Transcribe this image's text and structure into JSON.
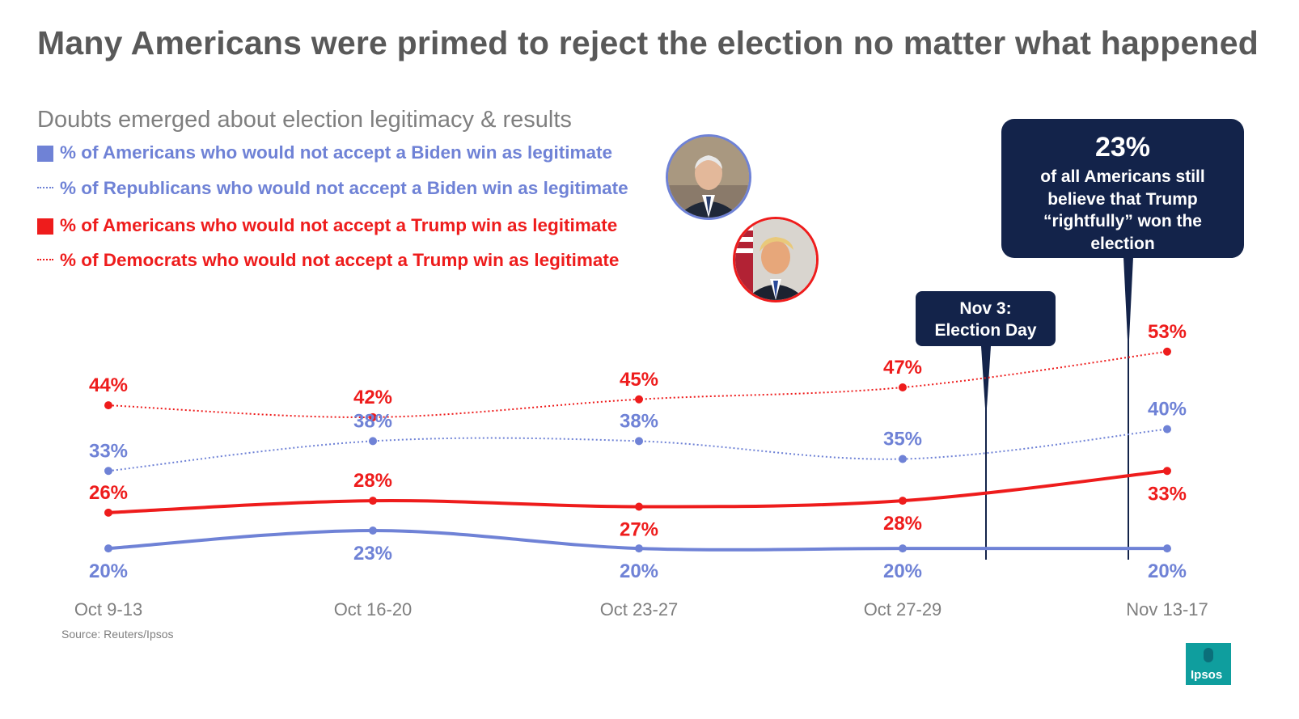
{
  "title": "Many Americans were primed to reject the election no matter what happened",
  "subtitle": "Doubts emerged about election legitimacy & results",
  "legend": [
    {
      "label": "% of Americans who would not accept a Biden win as legitimate",
      "style": "solid",
      "color": "#6f82d6"
    },
    {
      "label": "% of Republicans who would not accept a Biden win as legitimate",
      "style": "dotted",
      "color": "#6f82d6"
    },
    {
      "label": "% of Americans who would not accept a Trump win as legitimate",
      "style": "solid",
      "color": "#ee1c1c"
    },
    {
      "label": "% of Democrats who would not accept a Trump win as legitimate",
      "style": "dotted",
      "color": "#ee1c1c"
    }
  ],
  "callout_big": {
    "pct": "23%",
    "text": "of all Americans still believe that Trump “rightfully” won the election"
  },
  "callout_small": {
    "text": "Nov 3: Election Day"
  },
  "source": "Source: Reuters/Ipsos",
  "logo": {
    "text": "Ipsos",
    "color": "#0f9e9e"
  },
  "chart_data": {
    "type": "line",
    "categories": [
      "Oct 9-13",
      "Oct 16-20",
      "Oct 23-27",
      "Oct 27-29",
      "Nov 13-17"
    ],
    "series": [
      {
        "name": "% of Democrats who would not accept a Trump win as legitimate",
        "values": [
          44,
          42,
          45,
          47,
          53
        ],
        "labels": [
          "44%",
          "42%",
          "45%",
          "47%",
          "53%"
        ],
        "color": "#ee1c1c",
        "style": "dotted"
      },
      {
        "name": "% of Republicans who would not accept a Biden win as legitimate",
        "values": [
          33,
          38,
          38,
          35,
          40
        ],
        "labels": [
          "33%",
          "38%",
          "38%",
          "35%",
          "40%"
        ],
        "color": "#6f82d6",
        "style": "dotted"
      },
      {
        "name": "% of Americans who would not accept a Trump win as legitimate",
        "values": [
          26,
          28,
          27,
          28,
          33
        ],
        "labels": [
          "26%",
          "28%",
          "27%",
          "28%",
          "33%"
        ],
        "color": "#ee1c1c",
        "style": "solid"
      },
      {
        "name": "% of Americans who would not accept a Biden win as legitimate",
        "values": [
          20,
          23,
          20,
          20,
          20
        ],
        "labels": [
          "20%",
          "23%",
          "20%",
          "20%",
          "20%"
        ],
        "color": "#6f82d6",
        "style": "solid"
      }
    ],
    "annotations": [
      "Nov 3: Election Day",
      "23% of all Americans still believe that Trump “rightfully” won the election"
    ],
    "ylim": [
      15,
      55
    ],
    "grid": false,
    "xlabel": "",
    "ylabel": ""
  }
}
